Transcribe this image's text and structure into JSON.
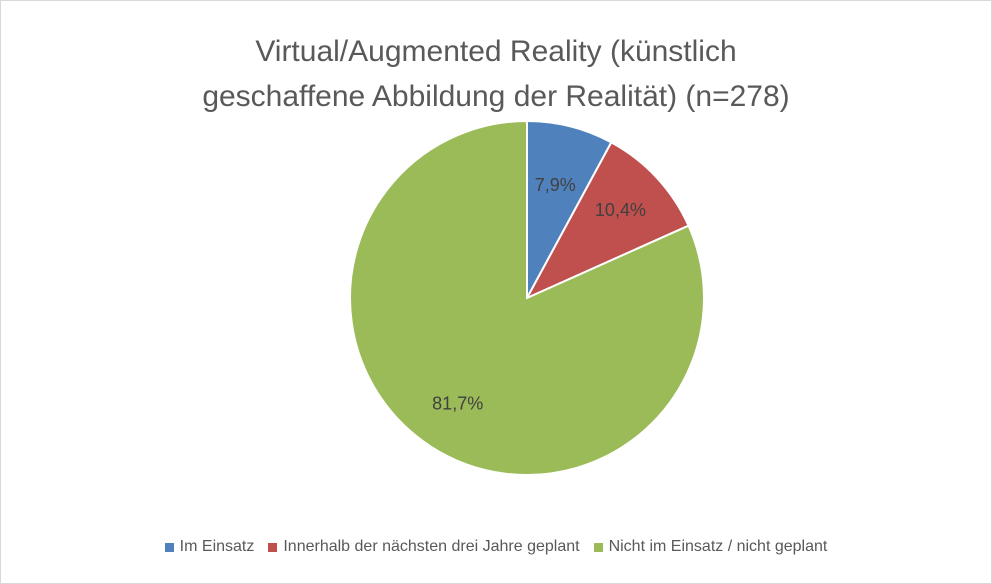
{
  "chart_data": {
    "type": "pie",
    "title": "Virtual/Augmented Reality (künstlich geschaffene Abbildung der Realität) (n=278)",
    "categories": [
      "Im Einsatz",
      "Innerhalb der nächsten drei Jahre geplant",
      "Nicht im Einsatz / nicht geplant"
    ],
    "values": [
      7.9,
      10.4,
      81.7
    ],
    "value_labels": [
      "7,9%",
      "10,4%",
      "81,7%"
    ],
    "colors": [
      "#4f81bd",
      "#c0504d",
      "#9bbb59"
    ],
    "legend": "bottom"
  }
}
